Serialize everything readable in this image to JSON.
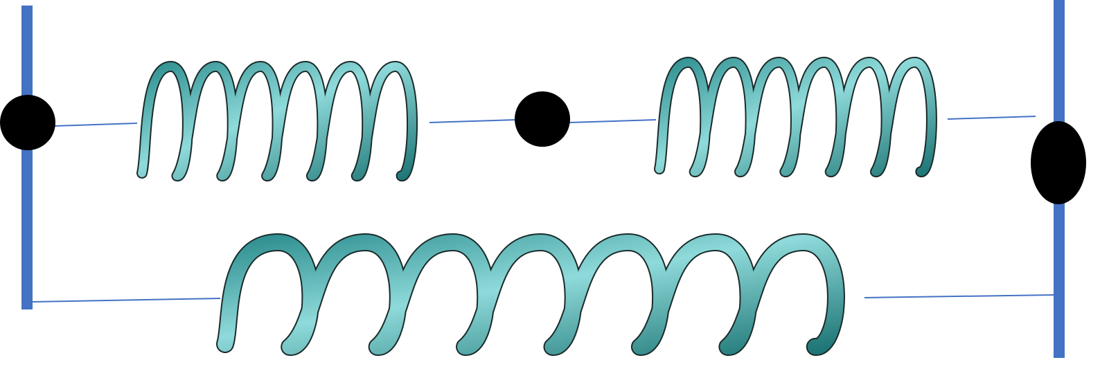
{
  "diagram": {
    "wall_color": "#4472c4",
    "wire_color": "#4472c4",
    "mass_color": "#000000",
    "spring_color": "#3aa8a8",
    "spring_highlight": "#8fdada",
    "spring_outline": "#1b2a2a",
    "springs": [
      {
        "id": "spring-top-left",
        "coils": 6
      },
      {
        "id": "spring-top-right",
        "coils": 6
      },
      {
        "id": "spring-bottom",
        "coils": 7
      }
    ],
    "masses": [
      {
        "id": "left-wall-mass"
      },
      {
        "id": "middle-mass"
      },
      {
        "id": "right-wall-mass"
      }
    ]
  }
}
